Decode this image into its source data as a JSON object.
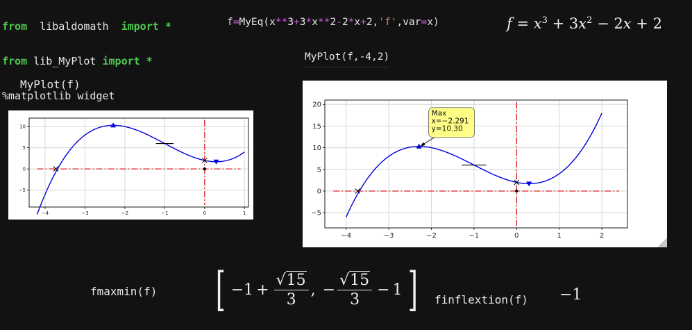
{
  "code_cell": {
    "line1": {
      "kw1": "from",
      "mod": "libaldomath",
      "kw2": "import",
      "star": "*"
    },
    "line2": {
      "kw1": "from",
      "mod": "lib_MyPlot",
      "kw2": "import",
      "star": "*"
    },
    "line3": "%matplotlib widget"
  },
  "define_cell": {
    "lhs": "f",
    "eq": "=",
    "fn": "MyEq(",
    "x1": "x",
    "pow1": "**",
    "n3a": "3",
    "plus1": "+",
    "n3b": "3",
    "mul1": "*",
    "x2": "x",
    "pow2": "**",
    "n2a": "2",
    "minus1": "-",
    "n2b": "2",
    "mul2": "*",
    "x3": "x",
    "plus2": "+",
    "n2c": "2",
    "comma1": ",",
    "str": "'f'",
    "comma2": ",",
    "var": "var",
    "eq2": "=",
    "x4": "x",
    "close": ")"
  },
  "equation": {
    "f": "f",
    "eq": "=",
    "x": "x",
    "e3": "3",
    "plus1": "+",
    "c3": "3",
    "x2": "x",
    "e2": "2",
    "minus": "−",
    "c2": "2",
    "x3": "x",
    "plus2": "+",
    "c0": "2"
  },
  "myplot_call_right": "MyPlot(f,-4,2)",
  "myplot_call_left": "MyPlot(f)",
  "fmaxmin_call": "fmaxmin(f)",
  "finflextion_call": "finflextion(f)",
  "finflextion_result": "−1",
  "fmaxmin_result": {
    "term1": {
      "a": "−1",
      "sign": "+",
      "num_sqrt": "15",
      "den": "3"
    },
    "sep": ",",
    "term2": {
      "neg": "−",
      "num_sqrt": "15",
      "den": "3",
      "sign": "−",
      "b": "1"
    }
  },
  "annotation": {
    "line1": "Max",
    "line2": "x=−2.291",
    "line3": "y=10.30"
  },
  "chart_data": [
    {
      "type": "line",
      "function": "x^3+3x^2-2x+2",
      "x_range": [
        -4.2,
        1.0
      ],
      "xlim": [
        -4.4,
        1.1
      ],
      "ylim": [
        -9,
        12
      ],
      "x_ticks": [
        "−4",
        "−3",
        "−2",
        "−1",
        "0",
        "1"
      ],
      "y_ticks": [
        "−5",
        "0",
        "5",
        "10"
      ],
      "grid": true,
      "points": [
        {
          "label": "root",
          "x": -3.73,
          "y": 0
        },
        {
          "label": "max",
          "x": -2.291,
          "y": 10.3
        },
        {
          "label": "min",
          "x": 0.291,
          "y": 1.7
        },
        {
          "label": "inflection",
          "x": -1,
          "y": 6
        },
        {
          "label": "y-intercept",
          "x": 0,
          "y": 2
        },
        {
          "label": "origin",
          "x": 0,
          "y": 0
        }
      ]
    },
    {
      "type": "line",
      "function": "x^3+3x^2-2x+2",
      "x_range": [
        -4.0,
        2.0
      ],
      "xlim": [
        -4.5,
        2.6
      ],
      "ylim": [
        -8.5,
        21
      ],
      "x_ticks": [
        "−4",
        "−3",
        "−2",
        "−1",
        "0",
        "1",
        "2"
      ],
      "y_ticks": [
        "−5",
        "0",
        "5",
        "10",
        "15",
        "20"
      ],
      "grid": true,
      "points": [
        {
          "label": "root",
          "x": -3.73,
          "y": 0
        },
        {
          "label": "max",
          "x": -2.291,
          "y": 10.3
        },
        {
          "label": "min",
          "x": 0.291,
          "y": 1.7
        },
        {
          "label": "inflection",
          "x": -1,
          "y": 6
        },
        {
          "label": "y-intercept",
          "x": 0,
          "y": 2
        },
        {
          "label": "origin",
          "x": 0,
          "y": 0
        }
      ]
    }
  ],
  "colors": {
    "curve": "#0000dd",
    "dash": "#dd2222",
    "keyword": "#4ec94e",
    "operator": "#c75bd6",
    "string": "#e07b6a",
    "annotation_bg": "#ffff88"
  }
}
